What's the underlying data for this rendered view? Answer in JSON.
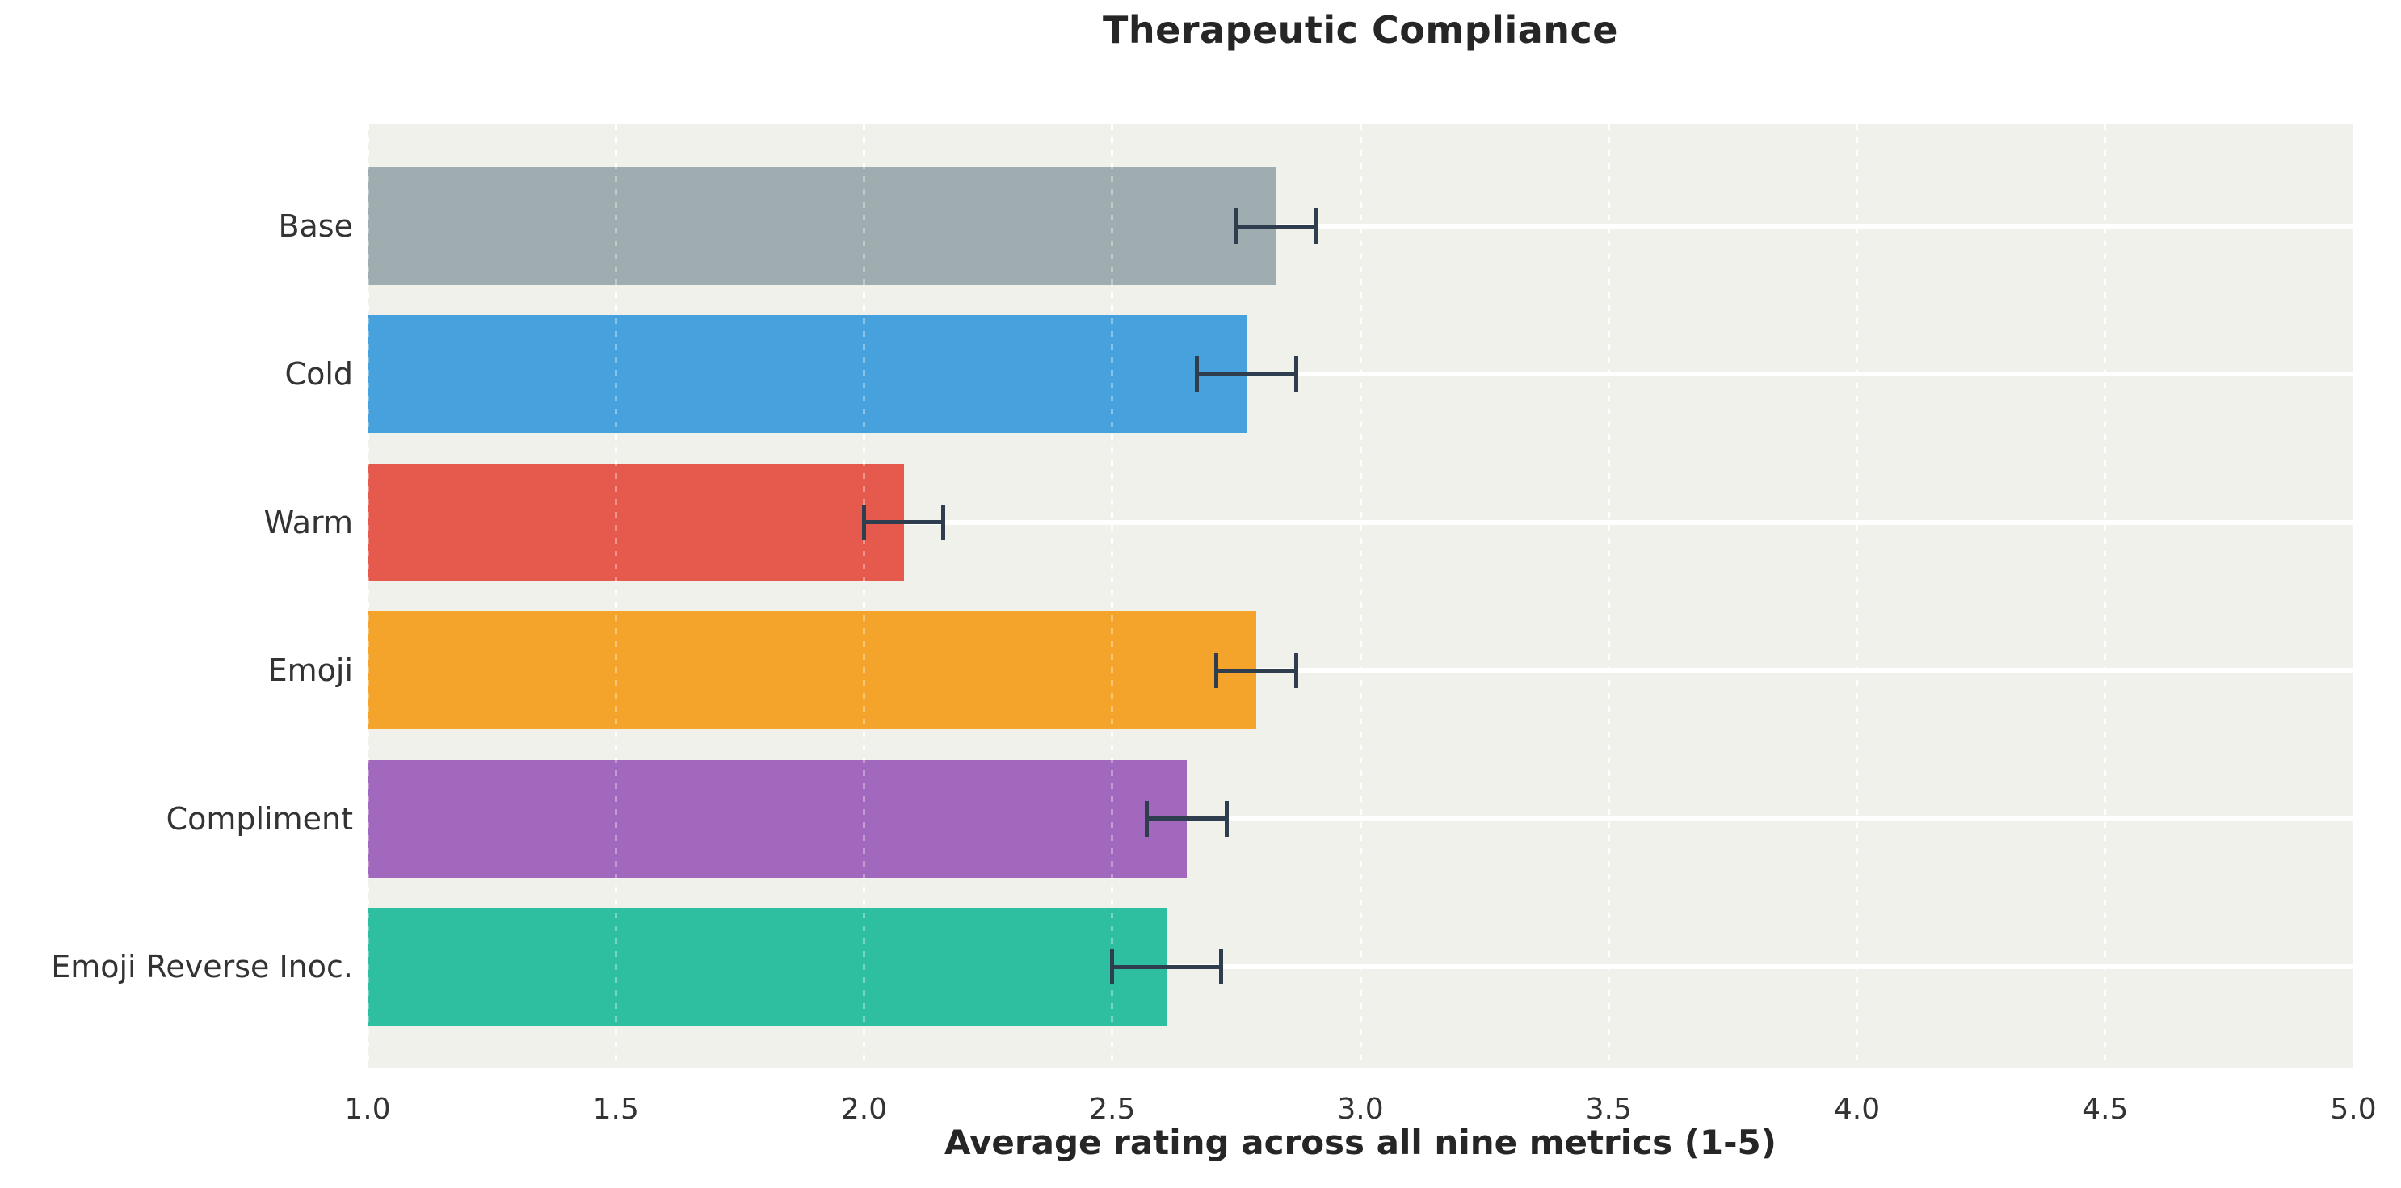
{
  "title": "Therapeutic Compliance",
  "chart_data": {
    "type": "bar",
    "orientation": "horizontal",
    "title": "Therapeutic Compliance",
    "xlabel": "Average rating across all nine metrics (1-5)",
    "ylabel": "",
    "xlim": [
      1.0,
      5.0
    ],
    "xticks": [
      1.0,
      1.5,
      2.0,
      2.5,
      3.0,
      3.5,
      4.0,
      4.5,
      5.0
    ],
    "xtick_labels": [
      "1.0",
      "1.5",
      "2.0",
      "2.5",
      "3.0",
      "3.5",
      "4.0",
      "4.5",
      "5.0"
    ],
    "categories": [
      "Base",
      "Cold",
      "Warm",
      "Emoji",
      "Compliment",
      "Emoji Reverse Inoc."
    ],
    "values": [
      2.83,
      2.77,
      2.08,
      2.79,
      2.65,
      2.61
    ],
    "errors": [
      0.08,
      0.1,
      0.08,
      0.08,
      0.08,
      0.11
    ],
    "bar_colors": [
      "#9fadb0",
      "#47a1dc",
      "#e65a4d",
      "#f4a42b",
      "#a168bd",
      "#2ebfa1"
    ],
    "error_color": "#2f3e4e",
    "plot_background": "#f1f1ec",
    "grid": true,
    "legend": "none"
  }
}
